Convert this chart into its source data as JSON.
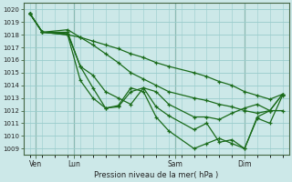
{
  "title": "",
  "xlabel": "Pression niveau de la mer( hPa )",
  "ylabel": "",
  "bg_color": "#cce8e8",
  "grid_color": "#99cccc",
  "line_color": "#1a6b1a",
  "marker_color": "#1a6b1a",
  "ylim": [
    1008.5,
    1020.5
  ],
  "yticks": [
    1009,
    1010,
    1011,
    1012,
    1013,
    1014,
    1015,
    1016,
    1017,
    1018,
    1019,
    1020
  ],
  "xtick_labels": [
    "Ven",
    "Lun",
    "Sam",
    "Dim"
  ],
  "xtick_positions": [
    0.5,
    3.5,
    11.5,
    17.0
  ],
  "vline_positions": [
    0.5,
    3.5,
    11.5,
    17.0
  ],
  "series": [
    {
      "x": [
        0,
        1,
        3,
        4,
        5,
        6,
        7,
        8,
        9,
        10,
        11,
        13,
        14,
        15,
        16,
        17,
        18,
        19,
        20
      ],
      "y": [
        1019.7,
        1018.2,
        1018.0,
        1017.8,
        1017.5,
        1017.2,
        1016.9,
        1016.5,
        1016.2,
        1015.8,
        1015.5,
        1015.0,
        1014.7,
        1014.3,
        1014.0,
        1013.5,
        1013.2,
        1012.9,
        1013.3
      ]
    },
    {
      "x": [
        0,
        1,
        3,
        4,
        5,
        6,
        7,
        8,
        9,
        10,
        11,
        13,
        14,
        15,
        16,
        17,
        18,
        19,
        20
      ],
      "y": [
        1019.7,
        1018.2,
        1018.4,
        1017.8,
        1017.2,
        1016.5,
        1015.8,
        1015.0,
        1014.5,
        1014.0,
        1013.5,
        1013.0,
        1012.8,
        1012.5,
        1012.3,
        1012.0,
        1011.8,
        1012.0,
        1013.3
      ]
    },
    {
      "x": [
        0,
        1,
        3,
        4,
        5,
        6,
        7,
        8,
        9,
        10,
        11,
        13,
        14,
        15,
        16,
        17,
        18,
        19,
        20
      ],
      "y": [
        1019.7,
        1018.2,
        1018.2,
        1015.5,
        1014.8,
        1013.5,
        1013.0,
        1012.5,
        1013.8,
        1013.5,
        1012.5,
        1011.5,
        1011.5,
        1011.3,
        1011.8,
        1012.2,
        1012.5,
        1012.0,
        1013.3
      ]
    },
    {
      "x": [
        0,
        1,
        3,
        4,
        5,
        6,
        7,
        8,
        9,
        10,
        11,
        13,
        14,
        15,
        16,
        17,
        18,
        19,
        20
      ],
      "y": [
        1019.7,
        1018.2,
        1018.0,
        1014.4,
        1013.0,
        1012.2,
        1012.3,
        1013.5,
        1013.8,
        1012.3,
        1011.6,
        1010.5,
        1011.0,
        1009.5,
        1009.7,
        1009.0,
        1011.4,
        1011.0,
        1013.2
      ]
    },
    {
      "x": [
        0,
        1,
        3,
        4,
        5,
        6,
        7,
        8,
        9,
        10,
        11,
        13,
        14,
        15,
        16,
        17,
        18,
        19,
        20
      ],
      "y": [
        1019.7,
        1018.2,
        1018.1,
        1015.5,
        1013.8,
        1012.2,
        1012.4,
        1013.8,
        1013.5,
        1011.5,
        1010.4,
        1009.0,
        1009.4,
        1009.8,
        1009.4,
        1009.0,
        1011.5,
        1012.0,
        1012.0
      ]
    }
  ],
  "x_max": 20,
  "figsize": [
    3.2,
    2.0
  ],
  "dpi": 100
}
